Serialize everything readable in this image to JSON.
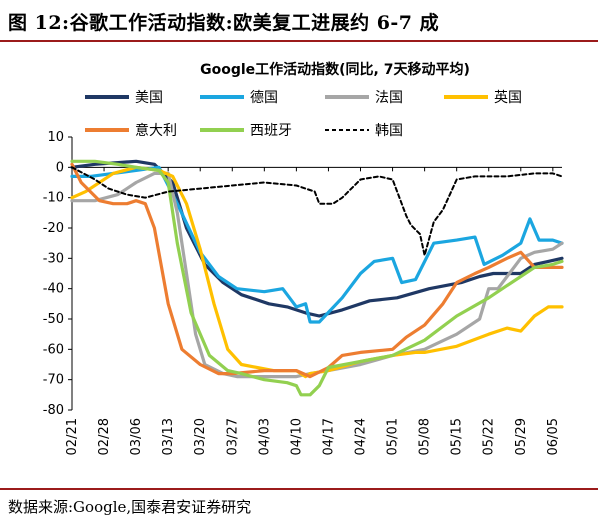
{
  "figure": {
    "title": "图 12:谷歌工作活动指数:欧美复工进展约 6-7 成",
    "source": "数据来源:Google,国泰君安证券研究"
  },
  "chart_data": {
    "type": "line",
    "title": "Google工作活动指数(同比, 7天移动平均)",
    "xlabel": "",
    "ylabel": "",
    "ylim": [
      -80,
      10
    ],
    "yticks": [
      10,
      0,
      -10,
      -20,
      -30,
      -40,
      -50,
      -60,
      -70,
      -80
    ],
    "x_start": "02/21",
    "x_end": "06/07",
    "xticks": [
      "02/21",
      "02/28",
      "03/06",
      "03/13",
      "03/20",
      "03/27",
      "04/03",
      "04/10",
      "04/17",
      "04/24",
      "05/01",
      "05/08",
      "05/15",
      "05/22",
      "05/29",
      "06/05"
    ],
    "grid": false,
    "legend_position": "top",
    "series": [
      {
        "name": "美国",
        "color": "#1f3864",
        "dash": "",
        "x": [
          "02/21",
          "02/26",
          "03/06",
          "03/10",
          "03/14",
          "03/17",
          "03/21",
          "03/25",
          "03/29",
          "04/04",
          "04/08",
          "04/12",
          "04/15",
          "04/20",
          "04/26",
          "05/02",
          "05/09",
          "05/16",
          "05/20",
          "05/23",
          "05/26",
          "05/29",
          "06/01",
          "06/04",
          "06/07"
        ],
        "y": [
          0,
          1,
          2,
          1,
          -5,
          -20,
          -32,
          -38,
          -42,
          -45,
          -46,
          -48,
          -49,
          -47,
          -44,
          -43,
          -40,
          -38,
          -36,
          -35,
          -35,
          -35,
          -32,
          -31,
          -30
        ]
      },
      {
        "name": "德国",
        "color": "#1ba6e0",
        "dash": "",
        "x": [
          "02/21",
          "02/25",
          "03/01",
          "03/06",
          "03/11",
          "03/15",
          "03/20",
          "03/24",
          "03/28",
          "04/03",
          "04/07",
          "04/10",
          "04/12",
          "04/13",
          "04/15",
          "04/20",
          "04/24",
          "04/27",
          "05/01",
          "05/03",
          "05/06",
          "05/10",
          "05/15",
          "05/19",
          "05/21",
          "05/25",
          "05/29",
          "05/31",
          "06/02",
          "06/05",
          "06/07"
        ],
        "y": [
          -3,
          -3,
          -2,
          -1,
          0,
          -12,
          -28,
          -36,
          -40,
          -41,
          -40,
          -46,
          -45,
          -51,
          -51,
          -43,
          -35,
          -31,
          -30,
          -38,
          -37,
          -25,
          -24,
          -23,
          -32,
          -29,
          -25,
          -17,
          -24,
          -24,
          -25
        ]
      },
      {
        "name": "法国",
        "color": "#a6a6a6",
        "dash": "",
        "x": [
          "02/21",
          "02/26",
          "03/02",
          "03/06",
          "03/10",
          "03/13",
          "03/15",
          "03/17",
          "03/19",
          "03/21",
          "03/25",
          "03/28",
          "04/03",
          "04/10",
          "04/13",
          "04/17",
          "04/24",
          "05/01",
          "05/08",
          "05/15",
          "05/20",
          "05/22",
          "05/24",
          "05/29",
          "06/01",
          "06/05",
          "06/07"
        ],
        "y": [
          -11,
          -11,
          -9,
          -5,
          -2,
          -2,
          -15,
          -35,
          -55,
          -65,
          -68,
          -69,
          -69,
          -69,
          -68,
          -67,
          -65,
          -62,
          -60,
          -55,
          -50,
          -40,
          -40,
          -30,
          -28,
          -27,
          -25
        ]
      },
      {
        "name": "英国",
        "color": "#ffc000",
        "dash": "",
        "x": [
          "02/21",
          "02/24",
          "03/01",
          "03/06",
          "03/11",
          "03/14",
          "03/17",
          "03/20",
          "03/23",
          "03/26",
          "03/29",
          "04/05",
          "04/10",
          "04/12",
          "04/13",
          "04/17",
          "04/24",
          "05/01",
          "05/06",
          "05/08",
          "05/15",
          "05/22",
          "05/26",
          "05/29",
          "06/01",
          "06/04",
          "06/07"
        ],
        "y": [
          -10,
          -8,
          -2,
          0,
          -1,
          -3,
          -12,
          -27,
          -45,
          -60,
          -65,
          -67,
          -67,
          -69,
          -68,
          -67,
          -64,
          -62,
          -61,
          -61,
          -59,
          -55,
          -53,
          -54,
          -49,
          -46,
          -46
        ]
      },
      {
        "name": "意大利",
        "color": "#ed7d31",
        "dash": "",
        "x": [
          "02/21",
          "02/23",
          "02/27",
          "03/01",
          "03/04",
          "03/06",
          "03/08",
          "03/10",
          "03/13",
          "03/16",
          "03/20",
          "03/24",
          "03/27",
          "04/03",
          "04/10",
          "04/13",
          "04/17",
          "04/20",
          "04/24",
          "05/01",
          "05/04",
          "05/08",
          "05/12",
          "05/15",
          "05/19",
          "05/22",
          "05/26",
          "05/29",
          "06/01",
          "06/05",
          "06/07"
        ],
        "y": [
          1,
          -5,
          -11,
          -12,
          -12,
          -11,
          -12,
          -20,
          -45,
          -60,
          -65,
          -68,
          -68,
          -67,
          -67,
          -69,
          -66,
          -62,
          -61,
          -60,
          -56,
          -52,
          -45,
          -38,
          -35,
          -33,
          -30,
          -28,
          -33,
          -33,
          -33
        ]
      },
      {
        "name": "西班牙",
        "color": "#92d050",
        "dash": "",
        "x": [
          "02/21",
          "02/26",
          "03/02",
          "03/06",
          "03/11",
          "03/13",
          "03/15",
          "03/18",
          "03/22",
          "03/26",
          "03/29",
          "04/03",
          "04/08",
          "04/10",
          "04/11",
          "04/13",
          "04/15",
          "04/17",
          "04/24",
          "05/01",
          "05/08",
          "05/15",
          "05/22",
          "05/26",
          "05/29",
          "06/01",
          "06/05",
          "06/07"
        ],
        "y": [
          2,
          2,
          1,
          0,
          -1,
          -5,
          -25,
          -48,
          -62,
          -67,
          -68,
          -70,
          -71,
          -72,
          -75,
          -75,
          -72,
          -66,
          -64,
          -62,
          -57,
          -49,
          -43,
          -39,
          -36,
          -33,
          -32,
          -31
        ]
      },
      {
        "name": "韩国",
        "color": "#000000",
        "dash": "4,3",
        "x": [
          "02/21",
          "02/26",
          "02/29",
          "03/04",
          "03/08",
          "03/13",
          "03/20",
          "03/27",
          "04/03",
          "04/10",
          "04/14",
          "04/15",
          "04/18",
          "04/20",
          "04/24",
          "04/28",
          "05/01",
          "05/04",
          "05/05",
          "05/07",
          "05/08",
          "05/10",
          "05/12",
          "05/15",
          "05/19",
          "05/26",
          "06/01",
          "06/05",
          "06/07"
        ],
        "y": [
          0,
          -4,
          -7,
          -9,
          -10,
          -8,
          -7,
          -6,
          -5,
          -6,
          -8,
          -12,
          -12,
          -10,
          -4,
          -3,
          -4,
          -16,
          -19,
          -22,
          -29,
          -18,
          -14,
          -4,
          -3,
          -3,
          -2,
          -2,
          -3
        ]
      }
    ]
  }
}
